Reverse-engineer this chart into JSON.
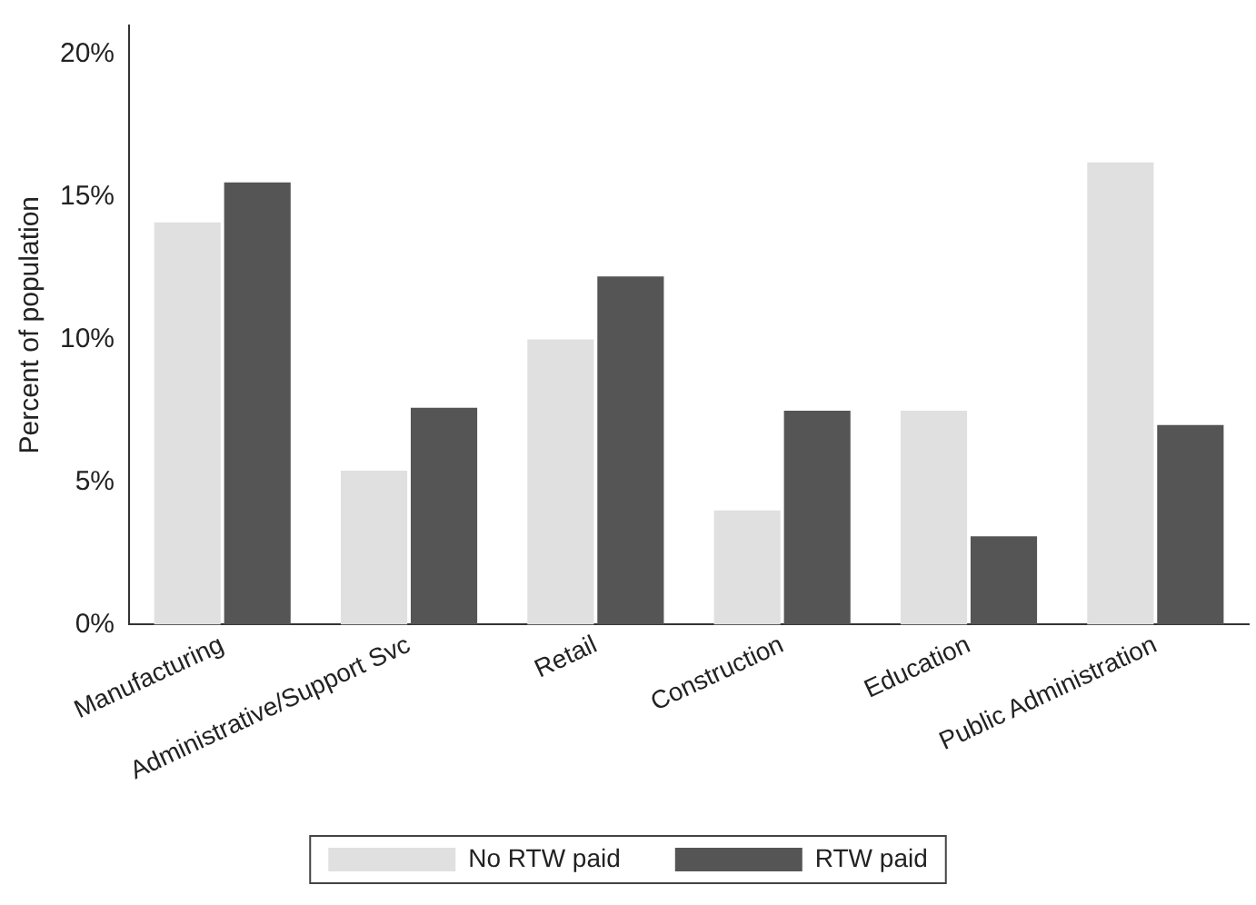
{
  "chart_data": {
    "type": "bar",
    "ylabel": "Percent of population",
    "categories": [
      "Manufacturing",
      "Administrative/Support Svc",
      "Retail",
      "Construction",
      "Education",
      "Public Administration"
    ],
    "series": [
      {
        "name": "No RTW paid",
        "color": "#e0e0e0",
        "values": [
          14.1,
          5.4,
          10.0,
          4.0,
          7.5,
          16.2
        ]
      },
      {
        "name": "RTW paid",
        "color": "#555555",
        "values": [
          15.5,
          7.6,
          12.2,
          7.5,
          3.1,
          7.0
        ]
      }
    ],
    "ylim": [
      0,
      21
    ],
    "yticks": [
      {
        "value": 0,
        "label": "0%"
      },
      {
        "value": 5,
        "label": "5%"
      },
      {
        "value": 10,
        "label": "10%"
      },
      {
        "value": 15,
        "label": "15%"
      },
      {
        "value": 20,
        "label": "20%"
      }
    ],
    "grid": false,
    "legend": "bottom"
  }
}
